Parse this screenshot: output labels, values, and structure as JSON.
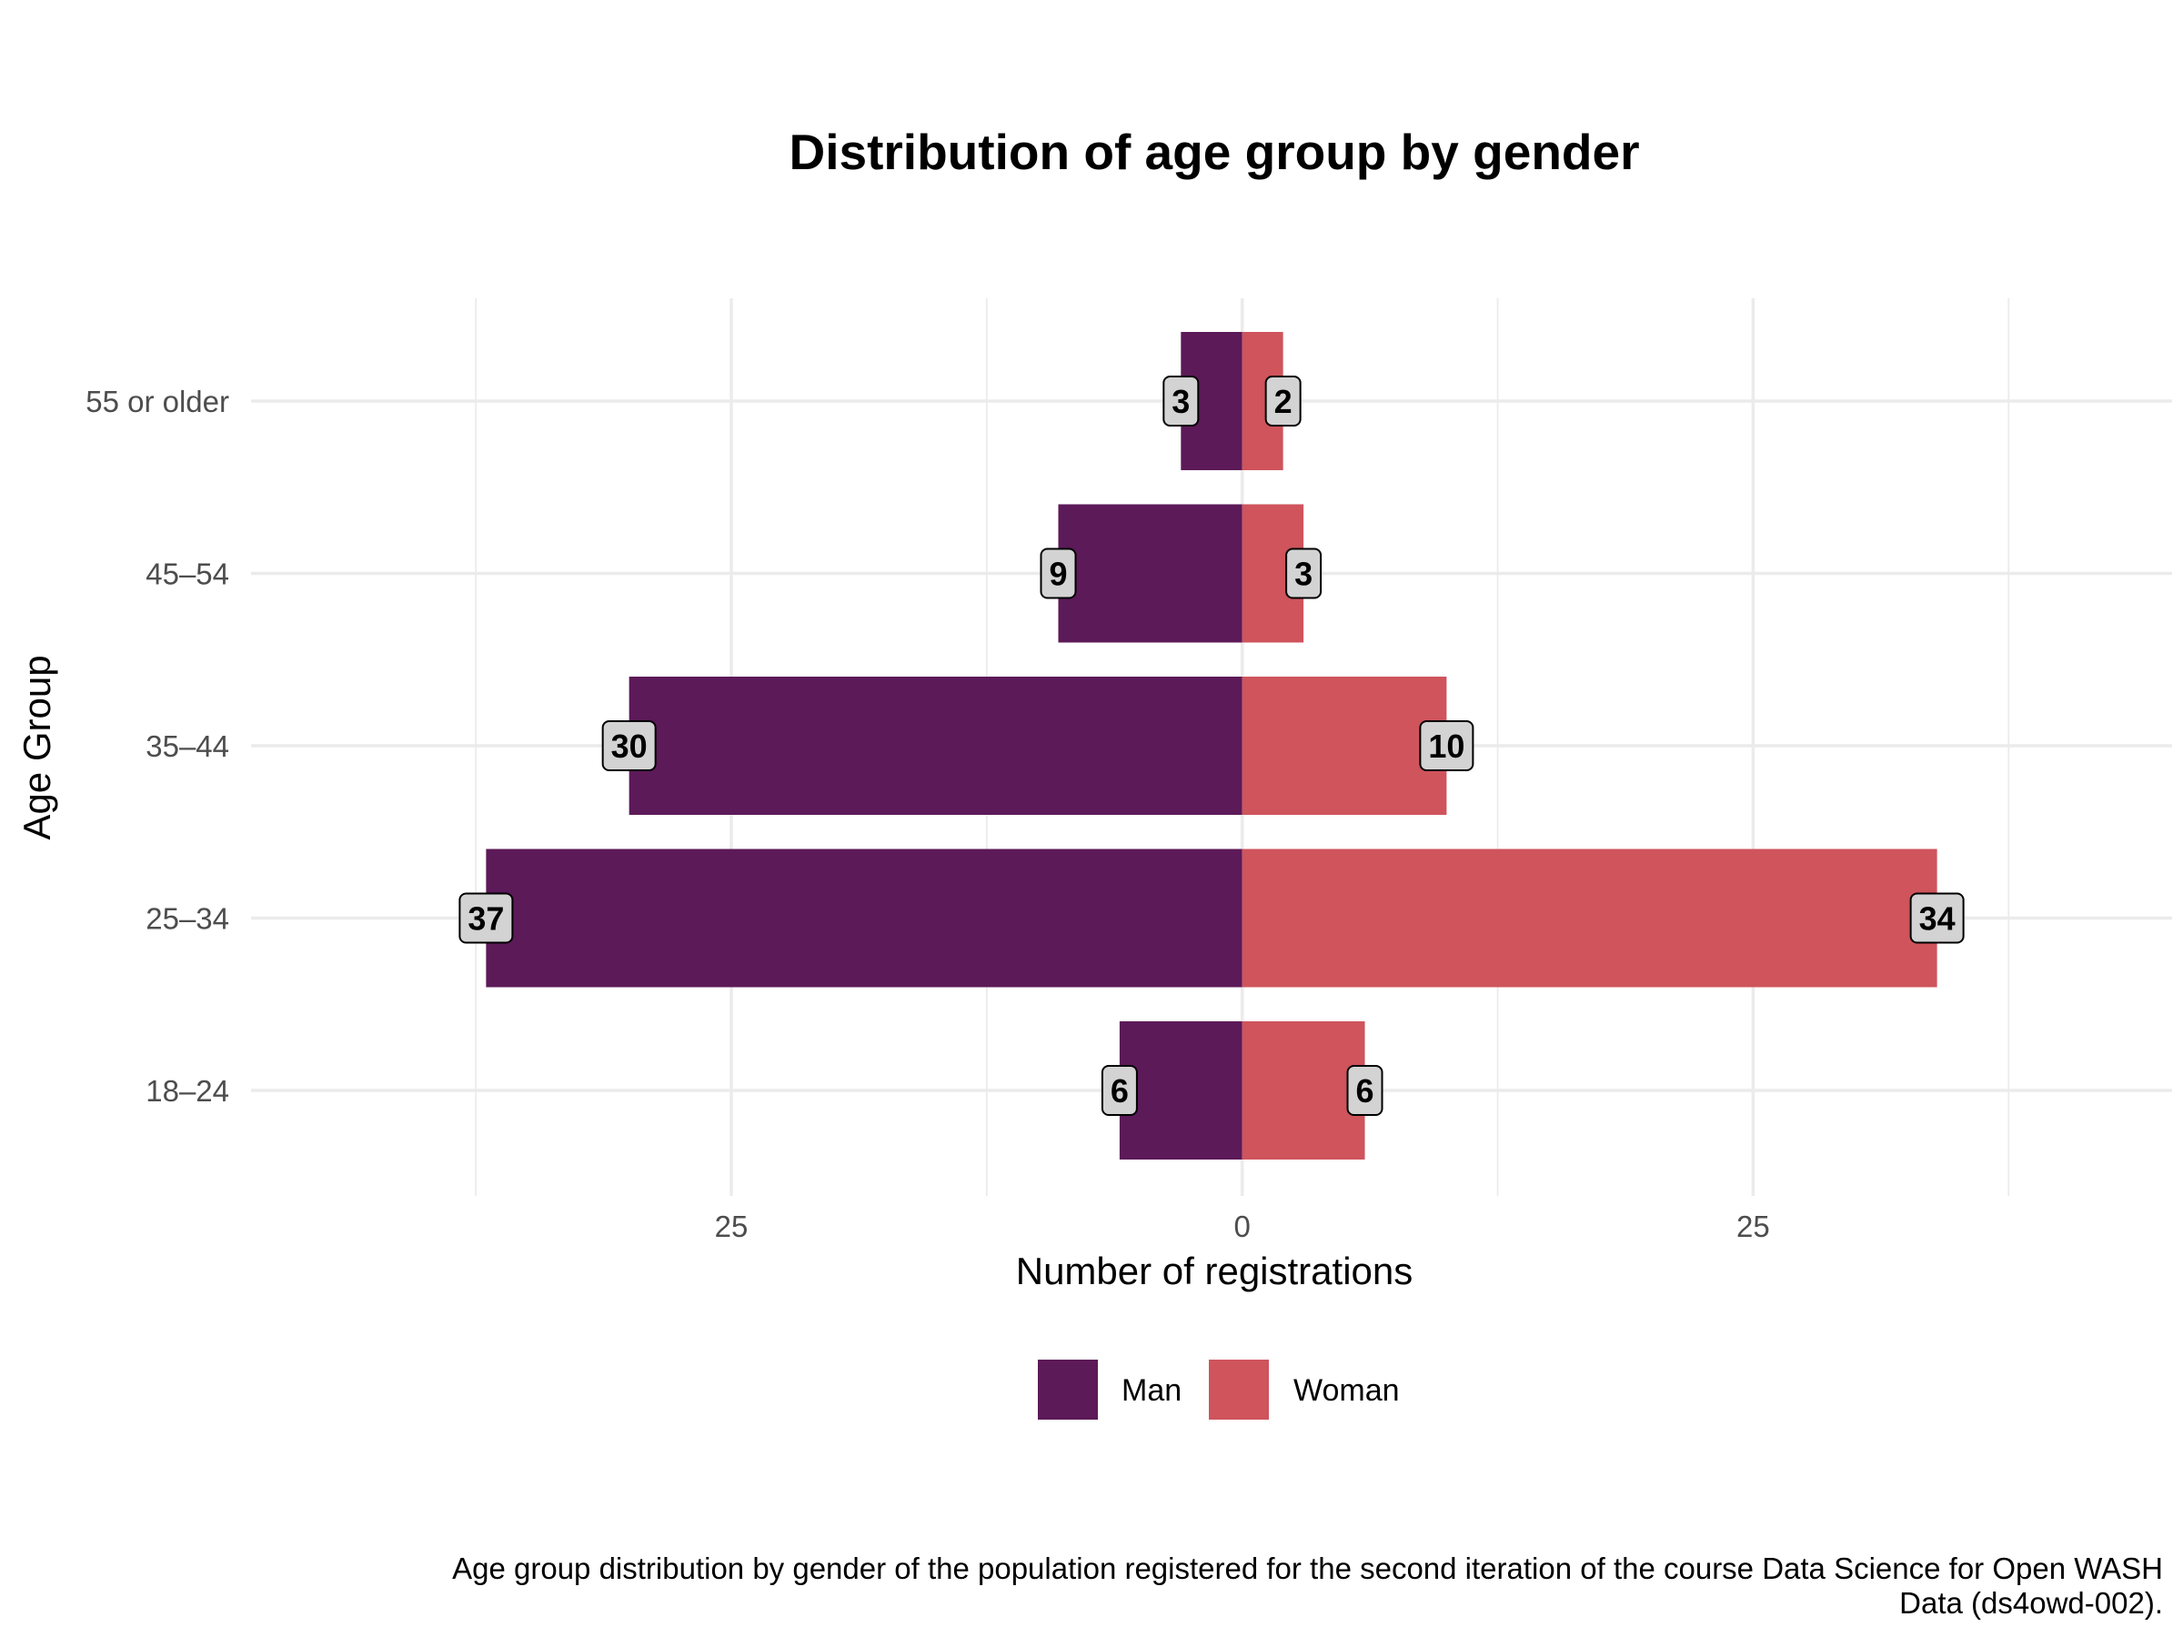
{
  "chart_data": {
    "type": "bar",
    "orientation": "horizontal",
    "layout": "diverging",
    "title": "Distribution of age group by gender",
    "xlabel": "Number of registrations",
    "ylabel": "Age Group",
    "categories": [
      "18–24",
      "25–34",
      "35–44",
      "45–54",
      "55 or older"
    ],
    "series": [
      {
        "name": "Man",
        "color": "#5c1a58",
        "side": "left",
        "values": [
          6,
          37,
          30,
          9,
          3
        ]
      },
      {
        "name": "Woman",
        "color": "#cf545c",
        "side": "right",
        "values": [
          6,
          34,
          10,
          3,
          2
        ]
      }
    ],
    "x_ticks": [
      {
        "value": -25,
        "label": "25"
      },
      {
        "value": 0,
        "label": "0"
      },
      {
        "value": 25,
        "label": "25"
      }
    ],
    "xlim": [
      -48.5,
      45.5
    ],
    "grid": true,
    "legend": {
      "position": "bottom",
      "entries": [
        "Man",
        "Woman"
      ]
    },
    "caption_lines": [
      "Age group distribution by gender of the population registered for the second iteration of the course Data Science for Open WASH",
      "Data (ds4owd-002)."
    ]
  }
}
